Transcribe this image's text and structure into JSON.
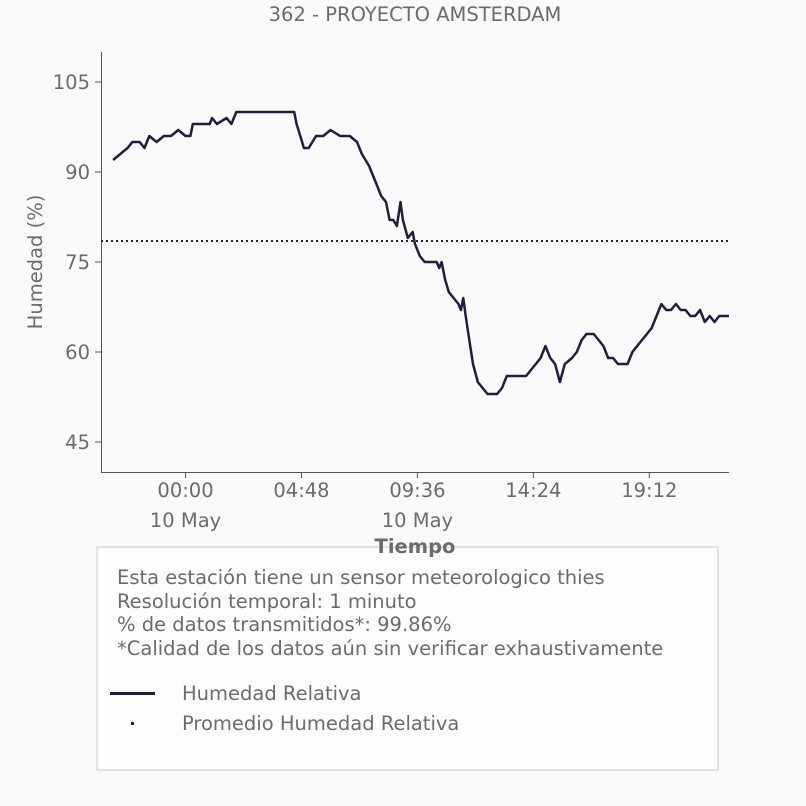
{
  "chart_data": {
    "type": "line",
    "title": "362 - PROYECTO AMSTERDAM",
    "xlabel": "Tiempo",
    "ylabel": "Humedad (%)",
    "x_unit": "hours from 00:00 10 May",
    "xlim": [
      -3.5,
      22.5
    ],
    "ylim": [
      40,
      110
    ],
    "yticks": [
      45,
      60,
      75,
      90,
      105
    ],
    "xticks": [
      {
        "x": 0,
        "label": "00:00",
        "sublabel": "10 May"
      },
      {
        "x": 4.8,
        "label": "04:48",
        "sublabel": ""
      },
      {
        "x": 9.6,
        "label": "09:36",
        "sublabel": "10 May"
      },
      {
        "x": 14.4,
        "label": "14:24",
        "sublabel": ""
      },
      {
        "x": 19.2,
        "label": "19:12",
        "sublabel": ""
      }
    ],
    "grid": false,
    "series": [
      {
        "name": "Humedad Relativa",
        "style": "solid",
        "color": "#1f1f3d",
        "points": [
          [
            -3.0,
            92
          ],
          [
            -2.7,
            93
          ],
          [
            -2.4,
            94
          ],
          [
            -2.2,
            95
          ],
          [
            -1.9,
            95
          ],
          [
            -1.7,
            94
          ],
          [
            -1.5,
            96
          ],
          [
            -1.2,
            95
          ],
          [
            -0.9,
            96
          ],
          [
            -0.6,
            96
          ],
          [
            -0.3,
            97
          ],
          [
            0.0,
            96
          ],
          [
            0.2,
            96
          ],
          [
            0.3,
            98
          ],
          [
            0.7,
            98
          ],
          [
            1.0,
            98
          ],
          [
            1.1,
            99
          ],
          [
            1.3,
            98
          ],
          [
            1.7,
            99
          ],
          [
            1.9,
            98
          ],
          [
            2.1,
            100
          ],
          [
            2.5,
            100
          ],
          [
            3.5,
            100
          ],
          [
            4.5,
            100
          ],
          [
            4.6,
            98
          ],
          [
            4.75,
            96
          ],
          [
            4.9,
            94
          ],
          [
            5.1,
            94
          ],
          [
            5.4,
            96
          ],
          [
            5.7,
            96
          ],
          [
            6.0,
            97
          ],
          [
            6.4,
            96
          ],
          [
            6.8,
            96
          ],
          [
            7.1,
            95
          ],
          [
            7.3,
            93
          ],
          [
            7.6,
            91
          ],
          [
            7.9,
            88
          ],
          [
            8.1,
            86
          ],
          [
            8.3,
            85
          ],
          [
            8.45,
            82
          ],
          [
            8.6,
            82
          ],
          [
            8.75,
            81
          ],
          [
            8.9,
            85
          ],
          [
            9.0,
            82
          ],
          [
            9.2,
            79
          ],
          [
            9.4,
            80
          ],
          [
            9.5,
            78
          ],
          [
            9.7,
            76
          ],
          [
            9.9,
            75
          ],
          [
            10.2,
            75
          ],
          [
            10.4,
            75
          ],
          [
            10.5,
            74
          ],
          [
            10.6,
            75
          ],
          [
            10.75,
            72
          ],
          [
            10.9,
            70
          ],
          [
            11.1,
            69
          ],
          [
            11.3,
            68
          ],
          [
            11.4,
            67
          ],
          [
            11.5,
            69
          ],
          [
            11.6,
            66
          ],
          [
            11.75,
            62
          ],
          [
            11.9,
            58
          ],
          [
            12.1,
            55
          ],
          [
            12.3,
            54
          ],
          [
            12.5,
            53
          ],
          [
            12.7,
            53
          ],
          [
            12.9,
            53
          ],
          [
            13.1,
            54
          ],
          [
            13.3,
            56
          ],
          [
            13.5,
            56
          ],
          [
            13.7,
            56
          ],
          [
            13.9,
            56
          ],
          [
            14.1,
            56
          ],
          [
            14.3,
            57
          ],
          [
            14.5,
            58
          ],
          [
            14.7,
            59
          ],
          [
            14.9,
            61
          ],
          [
            15.1,
            59
          ],
          [
            15.3,
            58
          ],
          [
            15.5,
            55
          ],
          [
            15.7,
            58
          ],
          [
            16.0,
            59
          ],
          [
            16.2,
            60
          ],
          [
            16.4,
            62
          ],
          [
            16.6,
            63
          ],
          [
            16.9,
            63
          ],
          [
            17.1,
            62
          ],
          [
            17.3,
            61
          ],
          [
            17.5,
            59
          ],
          [
            17.7,
            59
          ],
          [
            17.9,
            58
          ],
          [
            18.1,
            58
          ],
          [
            18.3,
            58
          ],
          [
            18.5,
            60
          ],
          [
            18.7,
            61
          ],
          [
            18.9,
            62
          ],
          [
            19.1,
            63
          ],
          [
            19.3,
            64
          ],
          [
            19.5,
            66
          ],
          [
            19.7,
            68
          ],
          [
            19.9,
            67
          ],
          [
            20.1,
            67
          ],
          [
            20.3,
            68
          ],
          [
            20.5,
            67
          ],
          [
            20.7,
            67
          ],
          [
            20.9,
            66
          ],
          [
            21.1,
            66
          ],
          [
            21.3,
            67
          ],
          [
            21.5,
            65
          ],
          [
            21.7,
            66
          ],
          [
            21.9,
            65
          ],
          [
            22.1,
            66
          ],
          [
            22.3,
            66
          ],
          [
            22.5,
            66
          ]
        ]
      },
      {
        "name": "Promedio Humedad Relativa",
        "style": "dotted",
        "color": "#1f1f3d",
        "points": [
          [
            -3.5,
            78.5
          ],
          [
            22.5,
            78.5
          ]
        ]
      }
    ]
  },
  "info": {
    "lines": [
      "Esta estación tiene un sensor meteorologico thies",
      "Resolución temporal: 1 minuto",
      "% de datos transmitidos*: 99.86%",
      "*Calidad de los datos aún sin verificar exhaustivamente"
    ],
    "legend": [
      {
        "label": "Humedad Relativa",
        "style": "solid"
      },
      {
        "label": "Promedio Humedad Relativa",
        "style": "dot"
      }
    ]
  }
}
